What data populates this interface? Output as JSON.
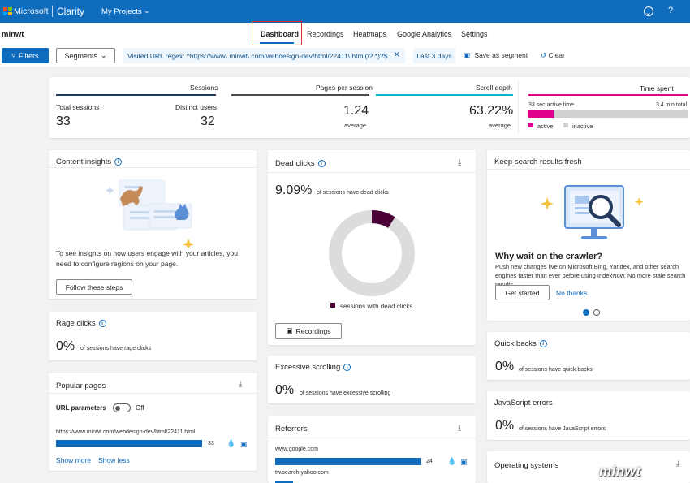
{
  "appbar": {
    "brand": "Microsoft",
    "product": "Clarity",
    "projects_label": "My Projects"
  },
  "site": {
    "name": "minwt"
  },
  "tabs": [
    {
      "label": "Dashboard",
      "active": true
    },
    {
      "label": "Recordings"
    },
    {
      "label": "Heatmaps"
    },
    {
      "label": "Google Analytics"
    },
    {
      "label": "Settings"
    }
  ],
  "filters": {
    "filters_label": "Filters",
    "segments_label": "Segments",
    "url_chip": "Visited URL regex: ^https://www\\.minwt\\.com/webdesign-dev/html/22411\\.html(\\?.*)?$",
    "date_chip": "Last 3 days",
    "save_label": "Save as segment",
    "clear_label": "Clear"
  },
  "stats": {
    "sessions": {
      "header": "Sessions",
      "total_label": "Total sessions",
      "total": "33",
      "distinct_label": "Distinct users",
      "distinct": "32"
    },
    "pages": {
      "header": "Pages per session",
      "value": "1.24",
      "sub": "average"
    },
    "scroll": {
      "header": "Scroll depth",
      "value": "63.22%",
      "sub": "average"
    },
    "time": {
      "header": "Time spent",
      "active_label": "33 sec active time",
      "total_label": "3.4 min total",
      "active_fraction": 0.16,
      "legend_active": "active",
      "legend_inactive": "inactive"
    }
  },
  "content_insights": {
    "title": "Content insights",
    "text": "To see insights on how users engage with your articles, you need to configure regions on your page.",
    "button": "Follow these steps"
  },
  "rage": {
    "title": "Rage clicks",
    "value": "0%",
    "sub": "of sessions have rage clicks"
  },
  "popular": {
    "title": "Popular pages",
    "url_params_label": "URL parameters",
    "toggle_state": "Off",
    "rows": [
      {
        "url": "https://www.minwt.com/webdesign-dev/html/22411.html",
        "count": "33"
      }
    ],
    "show_more": "Show more",
    "show_less": "Show less"
  },
  "dead": {
    "title": "Dead clicks",
    "value": "9.09%",
    "sub": "of sessions have dead clicks",
    "fraction": 0.0909,
    "legend": "sessions with dead clicks",
    "button": "Recordings"
  },
  "excessive": {
    "title": "Excessive scrolling",
    "value": "0%",
    "sub": "of sessions have excessive scrolling"
  },
  "referrers": {
    "title": "Referrers",
    "rows": [
      {
        "name": "www.google.com",
        "count": "24",
        "fraction": 1.0
      },
      {
        "name": "tw.search.yahoo.com",
        "count": "",
        "fraction": 0.12
      }
    ]
  },
  "search_card": {
    "title": "Keep search results fresh",
    "heading": "Why wait on the crawler?",
    "text": "Push new changes live on Microsoft Bing, Yandex, and other search engines faster than ever before using IndexNow. No more stale search results.",
    "primary": "Get started",
    "secondary": "No thanks"
  },
  "quick": {
    "title": "Quick backs",
    "value": "0%",
    "sub": "of sessions have quick backs"
  },
  "js": {
    "title": "JavaScript errors",
    "value": "0%",
    "sub": "of sessions have JavaScript errors"
  },
  "os": {
    "title": "Operating systems"
  },
  "watermark": "minwt",
  "colors": {
    "brand": "#0f6cbd",
    "pink": "#e3008c",
    "dark": "#4b0036",
    "teal": "#00b7c3",
    "highlight": "#d92b2b"
  }
}
